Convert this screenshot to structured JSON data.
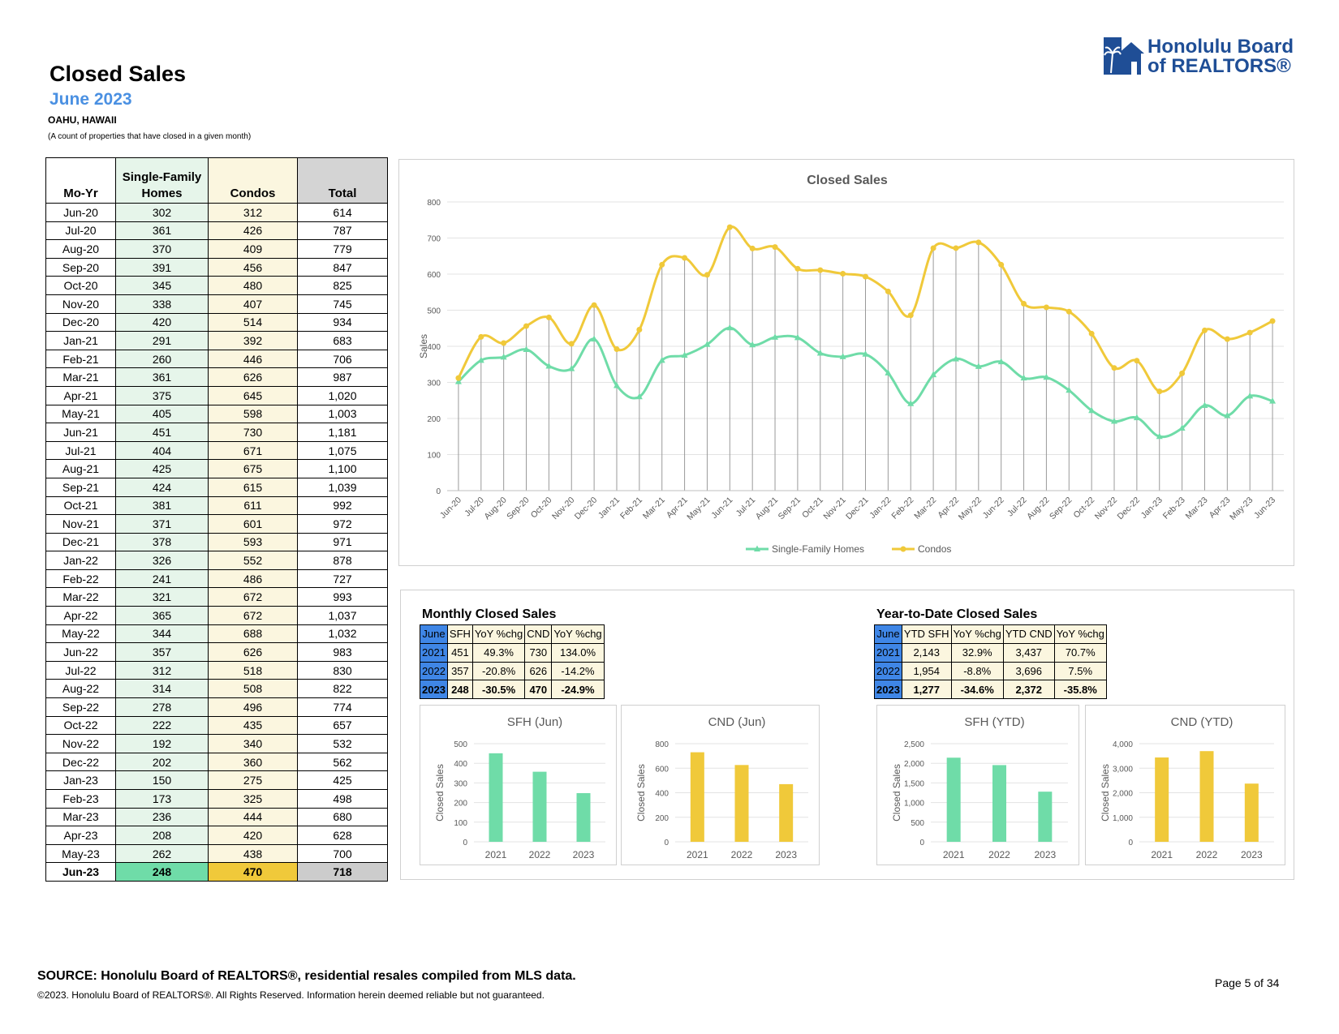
{
  "header": {
    "title": "Closed Sales",
    "subtitle": "June 2023",
    "region": "OAHU, HAWAII",
    "note": "(A count of properties that have closed in a given month)"
  },
  "logo": {
    "line1": "Honolulu Board",
    "line2": "of REALTORS®"
  },
  "colors": {
    "sfh": "#6fdca8",
    "condo": "#f0c93a",
    "yearBlue": "#3f86e6"
  },
  "table": {
    "headers": {
      "month": "Mo-Yr",
      "sfh_line1": "Single-Family",
      "sfh_line2": "Homes",
      "condo": "Condos",
      "total": "Total"
    },
    "rows": [
      {
        "m": "Jun-20",
        "s": "302",
        "c": "312",
        "t": "614"
      },
      {
        "m": "Jul-20",
        "s": "361",
        "c": "426",
        "t": "787"
      },
      {
        "m": "Aug-20",
        "s": "370",
        "c": "409",
        "t": "779"
      },
      {
        "m": "Sep-20",
        "s": "391",
        "c": "456",
        "t": "847"
      },
      {
        "m": "Oct-20",
        "s": "345",
        "c": "480",
        "t": "825"
      },
      {
        "m": "Nov-20",
        "s": "338",
        "c": "407",
        "t": "745"
      },
      {
        "m": "Dec-20",
        "s": "420",
        "c": "514",
        "t": "934"
      },
      {
        "m": "Jan-21",
        "s": "291",
        "c": "392",
        "t": "683"
      },
      {
        "m": "Feb-21",
        "s": "260",
        "c": "446",
        "t": "706"
      },
      {
        "m": "Mar-21",
        "s": "361",
        "c": "626",
        "t": "987"
      },
      {
        "m": "Apr-21",
        "s": "375",
        "c": "645",
        "t": "1,020"
      },
      {
        "m": "May-21",
        "s": "405",
        "c": "598",
        "t": "1,003"
      },
      {
        "m": "Jun-21",
        "s": "451",
        "c": "730",
        "t": "1,181"
      },
      {
        "m": "Jul-21",
        "s": "404",
        "c": "671",
        "t": "1,075"
      },
      {
        "m": "Aug-21",
        "s": "425",
        "c": "675",
        "t": "1,100"
      },
      {
        "m": "Sep-21",
        "s": "424",
        "c": "615",
        "t": "1,039"
      },
      {
        "m": "Oct-21",
        "s": "381",
        "c": "611",
        "t": "992"
      },
      {
        "m": "Nov-21",
        "s": "371",
        "c": "601",
        "t": "972"
      },
      {
        "m": "Dec-21",
        "s": "378",
        "c": "593",
        "t": "971"
      },
      {
        "m": "Jan-22",
        "s": "326",
        "c": "552",
        "t": "878"
      },
      {
        "m": "Feb-22",
        "s": "241",
        "c": "486",
        "t": "727"
      },
      {
        "m": "Mar-22",
        "s": "321",
        "c": "672",
        "t": "993"
      },
      {
        "m": "Apr-22",
        "s": "365",
        "c": "672",
        "t": "1,037"
      },
      {
        "m": "May-22",
        "s": "344",
        "c": "688",
        "t": "1,032"
      },
      {
        "m": "Jun-22",
        "s": "357",
        "c": "626",
        "t": "983"
      },
      {
        "m": "Jul-22",
        "s": "312",
        "c": "518",
        "t": "830"
      },
      {
        "m": "Aug-22",
        "s": "314",
        "c": "508",
        "t": "822"
      },
      {
        "m": "Sep-22",
        "s": "278",
        "c": "496",
        "t": "774"
      },
      {
        "m": "Oct-22",
        "s": "222",
        "c": "435",
        "t": "657"
      },
      {
        "m": "Nov-22",
        "s": "192",
        "c": "340",
        "t": "532"
      },
      {
        "m": "Dec-22",
        "s": "202",
        "c": "360",
        "t": "562"
      },
      {
        "m": "Jan-23",
        "s": "150",
        "c": "275",
        "t": "425"
      },
      {
        "m": "Feb-23",
        "s": "173",
        "c": "325",
        "t": "498"
      },
      {
        "m": "Mar-23",
        "s": "236",
        "c": "444",
        "t": "680"
      },
      {
        "m": "Apr-23",
        "s": "208",
        "c": "420",
        "t": "628"
      },
      {
        "m": "May-23",
        "s": "262",
        "c": "438",
        "t": "700"
      },
      {
        "m": "Jun-23",
        "s": "248",
        "c": "470",
        "t": "718"
      }
    ]
  },
  "chart_data": [
    {
      "type": "line",
      "title": "Closed Sales",
      "ylabel": "Sales",
      "xlabel": "",
      "ylim": [
        0,
        800
      ],
      "yticks": [
        0,
        100,
        200,
        300,
        400,
        500,
        600,
        700,
        800
      ],
      "legend_position": "bottom",
      "categories": [
        "Jun-20",
        "Jul-20",
        "Aug-20",
        "Sep-20",
        "Oct-20",
        "Nov-20",
        "Dec-20",
        "Jan-21",
        "Feb-21",
        "Mar-21",
        "Apr-21",
        "May-21",
        "Jun-21",
        "Jul-21",
        "Aug-21",
        "Sep-21",
        "Oct-21",
        "Nov-21",
        "Dec-21",
        "Jan-22",
        "Feb-22",
        "Mar-22",
        "Apr-22",
        "May-22",
        "Jun-22",
        "Jul-22",
        "Aug-22",
        "Sep-22",
        "Oct-22",
        "Nov-22",
        "Dec-22",
        "Jan-23",
        "Feb-23",
        "Mar-23",
        "Apr-23",
        "May-23",
        "Jun-23"
      ],
      "series": [
        {
          "name": "Single-Family Homes",
          "values": [
            302,
            361,
            370,
            391,
            345,
            338,
            420,
            291,
            260,
            361,
            375,
            405,
            451,
            404,
            425,
            424,
            381,
            371,
            378,
            326,
            241,
            321,
            365,
            344,
            357,
            312,
            314,
            278,
            222,
            192,
            202,
            150,
            173,
            236,
            208,
            262,
            248
          ]
        },
        {
          "name": "Condos",
          "values": [
            312,
            426,
            409,
            456,
            480,
            407,
            514,
            392,
            446,
            626,
            645,
            598,
            730,
            671,
            675,
            615,
            611,
            601,
            593,
            552,
            486,
            672,
            672,
            688,
            626,
            518,
            508,
            496,
            435,
            340,
            360,
            275,
            325,
            444,
            420,
            438,
            470
          ]
        }
      ]
    },
    {
      "type": "bar",
      "title": "SFH (Jun)",
      "ylabel": "Closed Sales",
      "categories": [
        "2021",
        "2022",
        "2023"
      ],
      "values": [
        451,
        357,
        248
      ],
      "ylim": [
        0,
        500
      ],
      "yticks": [
        0,
        100,
        200,
        300,
        400,
        500
      ],
      "ytick_labels": [
        "0",
        "100",
        "200",
        "300",
        "400",
        "500"
      ]
    },
    {
      "type": "bar",
      "title": "CND (Jun)",
      "ylabel": "Closed Sales",
      "categories": [
        "2021",
        "2022",
        "2023"
      ],
      "values": [
        730,
        626,
        470
      ],
      "ylim": [
        0,
        800
      ],
      "yticks": [
        0,
        200,
        400,
        600,
        800
      ],
      "ytick_labels": [
        "0",
        "200",
        "400",
        "600",
        "800"
      ]
    },
    {
      "type": "bar",
      "title": "SFH (YTD)",
      "ylabel": "Closed Sales",
      "categories": [
        "2021",
        "2022",
        "2023"
      ],
      "values": [
        2143,
        1954,
        1277
      ],
      "ylim": [
        0,
        2500
      ],
      "yticks": [
        0,
        500,
        1000,
        1500,
        2000,
        2500
      ],
      "ytick_labels": [
        "0",
        "500",
        "1,000",
        "1,500",
        "2,000",
        "2,500"
      ]
    },
    {
      "type": "bar",
      "title": "CND (YTD)",
      "ylabel": "Closed Sales",
      "categories": [
        "2021",
        "2022",
        "2023"
      ],
      "values": [
        3437,
        3696,
        2372
      ],
      "ylim": [
        0,
        4000
      ],
      "yticks": [
        0,
        1000,
        2000,
        3000,
        4000
      ],
      "ytick_labels": [
        "0",
        "1,000",
        "2,000",
        "3,000",
        "4,000"
      ]
    }
  ],
  "monthly": {
    "title": "Monthly Closed Sales",
    "headers": [
      "June",
      "SFH",
      "YoY %chg",
      "CND",
      "YoY %chg"
    ],
    "rows": [
      [
        "2021",
        "451",
        "49.3%",
        "730",
        "134.0%"
      ],
      [
        "2022",
        "357",
        "-20.8%",
        "626",
        "-14.2%"
      ],
      [
        "2023",
        "248",
        "-30.5%",
        "470",
        "-24.9%"
      ]
    ]
  },
  "ytd": {
    "title": "Year-to-Date Closed Sales",
    "headers": [
      "June",
      "YTD SFH",
      "YoY %chg",
      "YTD CND",
      "YoY %chg"
    ],
    "rows": [
      [
        "2021",
        "2,143",
        "32.9%",
        "3,437",
        "70.7%"
      ],
      [
        "2022",
        "1,954",
        "-8.8%",
        "3,696",
        "7.5%"
      ],
      [
        "2023",
        "1,277",
        "-34.6%",
        "2,372",
        "-35.8%"
      ]
    ]
  },
  "footer": {
    "source": "SOURCE: Honolulu Board of REALTORS®, residential resales compiled from MLS data.",
    "copyright": "©2023. Honolulu Board of REALTORS®. All Rights Reserved. Information herein deemed reliable but not guaranteed.",
    "page": "Page 5 of 34"
  }
}
